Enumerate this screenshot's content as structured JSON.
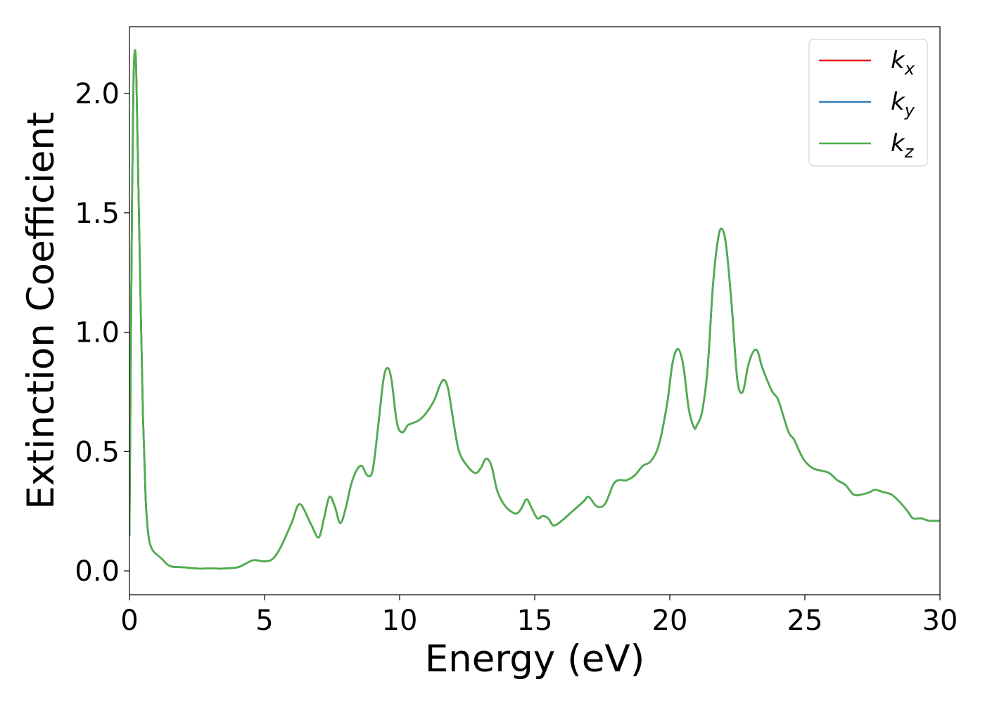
{
  "chart_data": {
    "type": "line",
    "xlabel": "Energy (eV)",
    "ylabel": "Extinction Coefficient",
    "xlim": [
      0,
      30
    ],
    "ylim": [
      -0.1,
      2.28
    ],
    "xticks": [
      0,
      5,
      10,
      15,
      20,
      25,
      30
    ],
    "xtick_labels": [
      "0",
      "5",
      "10",
      "15",
      "20",
      "25",
      "30"
    ],
    "yticks": [
      0.0,
      0.5,
      1.0,
      1.5,
      2.0
    ],
    "ytick_labels": [
      "0.0",
      "0.5",
      "1.0",
      "1.5",
      "2.0"
    ],
    "grid": false,
    "legend_position": "top-right",
    "series": [
      {
        "name": "k",
        "subscript": "x",
        "color": "#e41a1c",
        "x": [
          0.0,
          0.05,
          0.1,
          0.15,
          0.2,
          0.25,
          0.3,
          0.4,
          0.5,
          0.6,
          0.7,
          0.8,
          0.9,
          1.0,
          1.2,
          1.5,
          2.0,
          2.5,
          3.0,
          3.5,
          4.0,
          4.3,
          4.6,
          5.0,
          5.3,
          5.6,
          6.0,
          6.3,
          6.7,
          7.0,
          7.2,
          7.4,
          7.6,
          7.8,
          8.0,
          8.2,
          8.4,
          8.6,
          8.8,
          9.0,
          9.2,
          9.4,
          9.55,
          9.7,
          9.9,
          10.1,
          10.3,
          10.5,
          10.7,
          10.9,
          11.1,
          11.3,
          11.5,
          11.65,
          11.8,
          12.0,
          12.2,
          12.5,
          12.8,
          13.0,
          13.2,
          13.4,
          13.6,
          13.8,
          14.0,
          14.3,
          14.5,
          14.7,
          14.9,
          15.1,
          15.3,
          15.5,
          15.7,
          16.0,
          16.4,
          16.8,
          17.0,
          17.3,
          17.6,
          17.9,
          18.1,
          18.4,
          18.7,
          19.0,
          19.3,
          19.6,
          19.9,
          20.1,
          20.3,
          20.5,
          20.7,
          20.9,
          21.0,
          21.2,
          21.4,
          21.6,
          21.8,
          21.95,
          22.1,
          22.3,
          22.5,
          22.7,
          22.9,
          23.1,
          23.25,
          23.4,
          23.6,
          23.8,
          24.0,
          24.2,
          24.4,
          24.6,
          24.8,
          25.0,
          25.3,
          25.6,
          25.9,
          26.2,
          26.5,
          26.8,
          27.1,
          27.4,
          27.6,
          27.9,
          28.2,
          28.5,
          28.8,
          29.0,
          29.3,
          29.6,
          30.0
        ],
        "y": [
          0.15,
          0.9,
          1.6,
          2.05,
          2.18,
          2.1,
          1.8,
          1.2,
          0.65,
          0.3,
          0.15,
          0.1,
          0.08,
          0.07,
          0.05,
          0.02,
          0.015,
          0.01,
          0.01,
          0.01,
          0.015,
          0.03,
          0.045,
          0.04,
          0.05,
          0.1,
          0.2,
          0.28,
          0.2,
          0.14,
          0.22,
          0.31,
          0.27,
          0.2,
          0.26,
          0.36,
          0.42,
          0.44,
          0.4,
          0.42,
          0.6,
          0.8,
          0.85,
          0.8,
          0.62,
          0.58,
          0.61,
          0.62,
          0.63,
          0.65,
          0.68,
          0.72,
          0.78,
          0.8,
          0.76,
          0.62,
          0.5,
          0.44,
          0.41,
          0.43,
          0.47,
          0.44,
          0.34,
          0.29,
          0.26,
          0.24,
          0.26,
          0.3,
          0.26,
          0.22,
          0.23,
          0.22,
          0.19,
          0.21,
          0.25,
          0.29,
          0.31,
          0.27,
          0.28,
          0.36,
          0.38,
          0.38,
          0.4,
          0.44,
          0.46,
          0.53,
          0.7,
          0.87,
          0.93,
          0.86,
          0.68,
          0.6,
          0.61,
          0.67,
          0.85,
          1.2,
          1.4,
          1.43,
          1.35,
          1.1,
          0.8,
          0.75,
          0.86,
          0.92,
          0.92,
          0.86,
          0.8,
          0.75,
          0.72,
          0.65,
          0.58,
          0.55,
          0.5,
          0.46,
          0.43,
          0.42,
          0.41,
          0.38,
          0.36,
          0.32,
          0.32,
          0.33,
          0.34,
          0.33,
          0.32,
          0.29,
          0.25,
          0.22,
          0.22,
          0.21,
          0.21
        ]
      },
      {
        "name": "k",
        "subscript": "y",
        "color": "#377eb8",
        "x": [
          0.0,
          0.05,
          0.1,
          0.15,
          0.2,
          0.25,
          0.3,
          0.4,
          0.5,
          0.6,
          0.7,
          0.8,
          0.9,
          1.0,
          1.2,
          1.5,
          2.0,
          2.5,
          3.0,
          3.5,
          4.0,
          4.3,
          4.6,
          5.0,
          5.3,
          5.6,
          6.0,
          6.3,
          6.7,
          7.0,
          7.2,
          7.4,
          7.6,
          7.8,
          8.0,
          8.2,
          8.4,
          8.6,
          8.8,
          9.0,
          9.2,
          9.4,
          9.55,
          9.7,
          9.9,
          10.1,
          10.3,
          10.5,
          10.7,
          10.9,
          11.1,
          11.3,
          11.5,
          11.65,
          11.8,
          12.0,
          12.2,
          12.5,
          12.8,
          13.0,
          13.2,
          13.4,
          13.6,
          13.8,
          14.0,
          14.3,
          14.5,
          14.7,
          14.9,
          15.1,
          15.3,
          15.5,
          15.7,
          16.0,
          16.4,
          16.8,
          17.0,
          17.3,
          17.6,
          17.9,
          18.1,
          18.4,
          18.7,
          19.0,
          19.3,
          19.6,
          19.9,
          20.1,
          20.3,
          20.5,
          20.7,
          20.9,
          21.0,
          21.2,
          21.4,
          21.6,
          21.8,
          21.95,
          22.1,
          22.3,
          22.5,
          22.7,
          22.9,
          23.1,
          23.25,
          23.4,
          23.6,
          23.8,
          24.0,
          24.2,
          24.4,
          24.6,
          24.8,
          25.0,
          25.3,
          25.6,
          25.9,
          26.2,
          26.5,
          26.8,
          27.1,
          27.4,
          27.6,
          27.9,
          28.2,
          28.5,
          28.8,
          29.0,
          29.3,
          29.6,
          30.0
        ],
        "y": [
          0.15,
          0.9,
          1.6,
          2.05,
          2.18,
          2.1,
          1.8,
          1.2,
          0.65,
          0.3,
          0.15,
          0.1,
          0.08,
          0.07,
          0.05,
          0.02,
          0.015,
          0.01,
          0.01,
          0.01,
          0.015,
          0.03,
          0.045,
          0.04,
          0.05,
          0.1,
          0.2,
          0.28,
          0.2,
          0.14,
          0.22,
          0.31,
          0.27,
          0.2,
          0.26,
          0.36,
          0.42,
          0.44,
          0.4,
          0.42,
          0.6,
          0.8,
          0.85,
          0.8,
          0.62,
          0.58,
          0.61,
          0.62,
          0.63,
          0.65,
          0.68,
          0.72,
          0.78,
          0.8,
          0.76,
          0.62,
          0.5,
          0.44,
          0.41,
          0.43,
          0.47,
          0.44,
          0.34,
          0.29,
          0.26,
          0.24,
          0.26,
          0.3,
          0.26,
          0.22,
          0.23,
          0.22,
          0.19,
          0.21,
          0.25,
          0.29,
          0.31,
          0.27,
          0.28,
          0.36,
          0.38,
          0.38,
          0.4,
          0.44,
          0.46,
          0.53,
          0.7,
          0.87,
          0.93,
          0.86,
          0.68,
          0.6,
          0.61,
          0.67,
          0.85,
          1.2,
          1.4,
          1.43,
          1.35,
          1.1,
          0.8,
          0.75,
          0.86,
          0.92,
          0.92,
          0.86,
          0.8,
          0.75,
          0.72,
          0.65,
          0.58,
          0.55,
          0.5,
          0.46,
          0.43,
          0.42,
          0.41,
          0.38,
          0.36,
          0.32,
          0.32,
          0.33,
          0.34,
          0.33,
          0.32,
          0.29,
          0.25,
          0.22,
          0.22,
          0.21,
          0.21
        ]
      },
      {
        "name": "k",
        "subscript": "z",
        "color": "#4daf4a",
        "x": [
          0.0,
          0.05,
          0.1,
          0.15,
          0.2,
          0.25,
          0.3,
          0.4,
          0.5,
          0.6,
          0.7,
          0.8,
          0.9,
          1.0,
          1.2,
          1.5,
          2.0,
          2.5,
          3.0,
          3.5,
          4.0,
          4.3,
          4.6,
          5.0,
          5.3,
          5.6,
          6.0,
          6.3,
          6.7,
          7.0,
          7.2,
          7.4,
          7.6,
          7.8,
          8.0,
          8.2,
          8.4,
          8.6,
          8.8,
          9.0,
          9.2,
          9.4,
          9.55,
          9.7,
          9.9,
          10.1,
          10.3,
          10.5,
          10.7,
          10.9,
          11.1,
          11.3,
          11.5,
          11.65,
          11.8,
          12.0,
          12.2,
          12.5,
          12.8,
          13.0,
          13.2,
          13.4,
          13.6,
          13.8,
          14.0,
          14.3,
          14.5,
          14.7,
          14.9,
          15.1,
          15.3,
          15.5,
          15.7,
          16.0,
          16.4,
          16.8,
          17.0,
          17.3,
          17.6,
          17.9,
          18.1,
          18.4,
          18.7,
          19.0,
          19.3,
          19.6,
          19.9,
          20.1,
          20.3,
          20.5,
          20.7,
          20.9,
          21.0,
          21.2,
          21.4,
          21.6,
          21.8,
          21.95,
          22.1,
          22.3,
          22.5,
          22.7,
          22.9,
          23.1,
          23.25,
          23.4,
          23.6,
          23.8,
          24.0,
          24.2,
          24.4,
          24.6,
          24.8,
          25.0,
          25.3,
          25.6,
          25.9,
          26.2,
          26.5,
          26.8,
          27.1,
          27.4,
          27.6,
          27.9,
          28.2,
          28.5,
          28.8,
          29.0,
          29.3,
          29.6,
          30.0
        ],
        "y": [
          0.15,
          0.9,
          1.6,
          2.05,
          2.18,
          2.1,
          1.8,
          1.2,
          0.65,
          0.3,
          0.15,
          0.1,
          0.08,
          0.07,
          0.05,
          0.02,
          0.015,
          0.01,
          0.01,
          0.01,
          0.015,
          0.03,
          0.045,
          0.04,
          0.05,
          0.1,
          0.2,
          0.28,
          0.2,
          0.14,
          0.22,
          0.31,
          0.27,
          0.2,
          0.26,
          0.36,
          0.42,
          0.44,
          0.4,
          0.42,
          0.6,
          0.8,
          0.85,
          0.8,
          0.62,
          0.58,
          0.61,
          0.62,
          0.63,
          0.65,
          0.68,
          0.72,
          0.78,
          0.8,
          0.76,
          0.62,
          0.5,
          0.44,
          0.41,
          0.43,
          0.47,
          0.44,
          0.34,
          0.29,
          0.26,
          0.24,
          0.26,
          0.3,
          0.26,
          0.22,
          0.23,
          0.22,
          0.19,
          0.21,
          0.25,
          0.29,
          0.31,
          0.27,
          0.28,
          0.36,
          0.38,
          0.38,
          0.4,
          0.44,
          0.46,
          0.53,
          0.7,
          0.87,
          0.93,
          0.86,
          0.68,
          0.6,
          0.61,
          0.67,
          0.85,
          1.2,
          1.4,
          1.43,
          1.35,
          1.1,
          0.8,
          0.75,
          0.86,
          0.92,
          0.92,
          0.86,
          0.8,
          0.75,
          0.72,
          0.65,
          0.58,
          0.55,
          0.5,
          0.46,
          0.43,
          0.42,
          0.41,
          0.38,
          0.36,
          0.32,
          0.32,
          0.33,
          0.34,
          0.33,
          0.32,
          0.29,
          0.25,
          0.22,
          0.22,
          0.21,
          0.21
        ]
      }
    ]
  }
}
